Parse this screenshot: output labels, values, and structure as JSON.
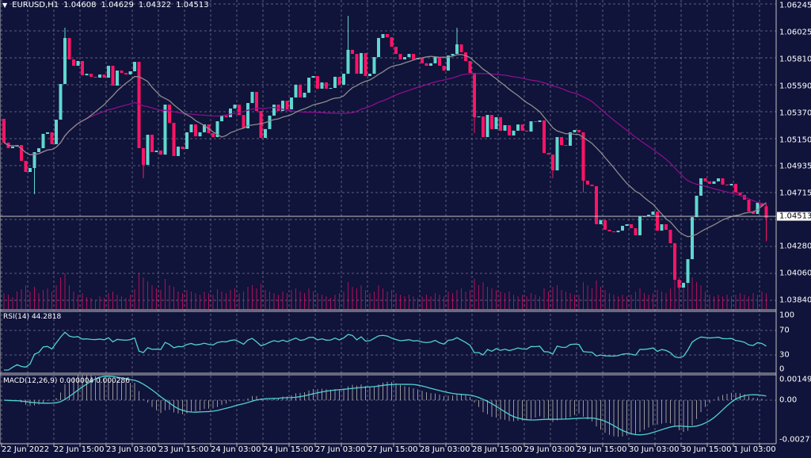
{
  "header": {
    "symbol": "EURUSD,H1",
    "open": "1.04608",
    "high": "1.04629",
    "low": "1.04322",
    "close": "1.04513",
    "menu_icon": "triangle-down-icon"
  },
  "current_price": "1.04513",
  "colors": {
    "background": "#10133a",
    "bull": "#5fd8cf",
    "bear": "#ff1466",
    "ma_fast": "#8c8c8c",
    "ma_slow": "#8a0f8a",
    "grid": "#7c8096",
    "rsi": "#4fd1d0",
    "macd_hist": "#9a9a9a",
    "macd_signal": "#4fd1d0",
    "volume": "#b0105a"
  },
  "price_axis": [
    "1.06245",
    "1.06025",
    "1.05810",
    "1.05590",
    "1.05370",
    "1.05150",
    "1.04935",
    "1.04715",
    "1.04280",
    "1.04060",
    "1.03840"
  ],
  "time_axis": [
    "22 Jun 2022",
    "22 Jun 15:00",
    "23 Jun 03:00",
    "23 Jun 15:00",
    "24 Jun 03:00",
    "24 Jun 15:00",
    "27 Jun 03:00",
    "27 Jun 15:00",
    "28 Jun 03:00",
    "28 Jun 15:00",
    "29 Jun 03:00",
    "29 Jun 15:00",
    "30 Jun 03:00",
    "30 Jun 15:00",
    "1 Jul 03:00"
  ],
  "rsi": {
    "label": "RSI(14) 44.2818",
    "levels": [
      "100",
      "70",
      "30",
      "0"
    ]
  },
  "macd": {
    "label": "MACD(12,26,9) 0.000004 0.000286",
    "levels": [
      "0.001499",
      "0.00",
      "-0.00271"
    ]
  },
  "chart_data": {
    "type": "candlestick",
    "timeframe": "H1",
    "first_open": 1.05322,
    "close": [
      1.05128,
      1.05082,
      1.05095,
      1.05108,
      1.04979,
      1.04888,
      1.0492,
      1.0505,
      1.05082,
      1.05199,
      1.05212,
      1.05115,
      1.05315,
      1.05606,
      1.05982,
      1.05807,
      1.05755,
      1.05794,
      1.05677,
      1.0569,
      1.05665,
      1.05658,
      1.05684,
      1.05658,
      1.05755,
      1.05593,
      1.05716,
      1.05697,
      1.05684,
      1.0571,
      1.05787,
      1.05082,
      1.04946,
      1.05192,
      1.0505,
      1.05063,
      1.0503,
      1.05438,
      1.05289,
      1.05018,
      1.05095,
      1.05076,
      1.05212,
      1.05276,
      1.05179,
      1.05212,
      1.05276,
      1.05205,
      1.05173,
      1.05302,
      1.05348,
      1.05335,
      1.05406,
      1.05438,
      1.05354,
      1.05244,
      1.05451,
      1.05542,
      1.05386,
      1.05166,
      1.05238,
      1.05348,
      1.05438,
      1.05386,
      1.0547,
      1.05399,
      1.05496,
      1.056,
      1.05496,
      1.05535,
      1.05658,
      1.05671,
      1.05568,
      1.05619,
      1.05568,
      1.05574,
      1.05665,
      1.056,
      1.0569,
      1.05885,
      1.05852,
      1.0569,
      1.05859,
      1.05671,
      1.0569,
      1.05826,
      1.05982,
      1.06014,
      1.05988,
      1.0591,
      1.05852,
      1.05807,
      1.05826,
      1.05852,
      1.05807,
      1.0582,
      1.05775,
      1.05755,
      1.05775,
      1.05826,
      1.05755,
      1.05716,
      1.05839,
      1.05852,
      1.0593,
      1.05865,
      1.05794,
      1.05697,
      1.05335,
      1.05341,
      1.05173,
      1.05354,
      1.05238,
      1.05335,
      1.05225,
      1.0527,
      1.05186,
      1.05225,
      1.05276,
      1.05225,
      1.05218,
      1.05302,
      1.05296,
      1.05309,
      1.05043,
      1.0503,
      1.04901,
      1.05173,
      1.05108,
      1.05102,
      1.05212,
      1.05231,
      1.05212,
      1.04817,
      1.04785,
      1.04772,
      1.04461,
      1.04494,
      1.04416,
      1.04403,
      1.04396,
      1.04409,
      1.04448,
      1.04461,
      1.04429,
      1.04371,
      1.04526,
      1.04526,
      1.04539,
      1.04565,
      1.04409,
      1.04461,
      1.04416,
      1.04306,
      1.04008,
      1.03944,
      1.03982,
      1.04176,
      1.04519,
      1.04694,
      1.04836,
      1.04811,
      1.04791,
      1.04811,
      1.04836,
      1.04785,
      1.04778,
      1.04791,
      1.0472,
      1.047,
      1.04662,
      1.04565,
      1.04545,
      1.04636,
      1.04608,
      1.04513
    ],
    "wicks": [
      {
        "bar": 7,
        "low": 1.04707
      },
      {
        "bar": 14,
        "high": 1.06066
      },
      {
        "bar": 32,
        "low": 1.04836
      },
      {
        "bar": 79,
        "high": 1.06163
      },
      {
        "bar": 104,
        "high": 1.06066
      },
      {
        "bar": 108,
        "low": 1.05205
      },
      {
        "bar": 126,
        "low": 1.04836
      },
      {
        "bar": 133,
        "low": 1.0472
      },
      {
        "bar": 155,
        "low": 1.03931
      },
      {
        "bar": 174,
        "high": 1.04629
      },
      {
        "bar": 175,
        "high": 1.04629,
        "low": 1.04322
      }
    ],
    "volume": [
      20,
      18,
      15,
      22,
      25,
      30,
      22,
      28,
      20,
      24,
      26,
      22,
      30,
      40,
      45,
      30,
      22,
      18,
      20,
      15,
      14,
      12,
      16,
      14,
      20,
      22,
      18,
      16,
      14,
      18,
      25,
      45,
      40,
      35,
      30,
      26,
      24,
      38,
      30,
      28,
      22,
      20,
      24,
      22,
      20,
      18,
      22,
      20,
      18,
      25,
      22,
      20,
      24,
      26,
      20,
      22,
      28,
      30,
      26,
      32,
      24,
      22,
      20,
      18,
      22,
      20,
      24,
      26,
      22,
      20,
      26,
      22,
      20,
      18,
      16,
      14,
      18,
      20,
      22,
      34,
      28,
      26,
      30,
      24,
      20,
      22,
      30,
      26,
      22,
      24,
      20,
      18,
      16,
      18,
      16,
      14,
      16,
      18,
      16,
      20,
      18,
      16,
      22,
      20,
      24,
      26,
      22,
      24,
      38,
      30,
      34,
      28,
      26,
      24,
      22,
      20,
      22,
      18,
      16,
      18,
      16,
      20,
      18,
      16,
      26,
      22,
      28,
      30,
      24,
      22,
      20,
      18,
      18,
      34,
      30,
      26,
      36,
      28,
      24,
      20,
      18,
      16,
      18,
      16,
      18,
      22,
      26,
      20,
      18,
      20,
      24,
      22,
      20,
      26,
      38,
      40,
      34,
      36,
      40,
      34,
      30,
      22,
      18,
      16,
      18,
      16,
      18,
      16,
      18,
      20,
      18,
      16,
      20,
      18,
      22,
      20
    ]
  }
}
